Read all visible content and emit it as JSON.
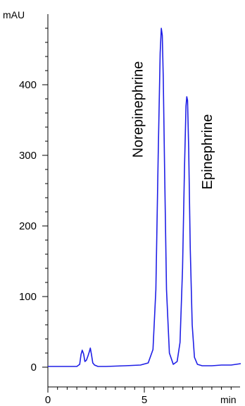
{
  "chart_data": {
    "type": "line",
    "title": "",
    "ylabel": "mAU",
    "xlabel": "min",
    "xlim": [
      0,
      10
    ],
    "ylim": [
      -10,
      490
    ],
    "x_ticks": [
      0,
      5
    ],
    "x_tick_labels": [
      "0",
      "5"
    ],
    "y_ticks": [
      0,
      100,
      200,
      300,
      400
    ],
    "y_tick_labels": [
      "0",
      "100",
      "200",
      "300",
      "400"
    ],
    "line_color": "#1f1fe6",
    "annotations": [
      {
        "label": "Norepinephrine",
        "x": 4.9,
        "y": 365
      },
      {
        "label": "Epinephrine",
        "x": 8.5,
        "y": 305
      }
    ],
    "series": [
      {
        "x": [
          0.0,
          1.5,
          1.65,
          1.72,
          1.78,
          1.85,
          1.92,
          2.0,
          2.08,
          2.15,
          2.2,
          2.26,
          2.33,
          2.42,
          2.6,
          3.0,
          4.0,
          4.8,
          5.2,
          5.45,
          5.6,
          5.72,
          5.82,
          5.88,
          5.93,
          5.98,
          6.05,
          6.15,
          6.3,
          6.5,
          6.7,
          6.85,
          6.98,
          7.08,
          7.16,
          7.2,
          7.24,
          7.3,
          7.38,
          7.48,
          7.6,
          7.75,
          8.0,
          8.5,
          9.0,
          9.5,
          10.0
        ],
        "y": [
          1,
          1,
          4,
          18,
          24,
          19,
          8,
          10,
          16,
          22,
          27,
          18,
          6,
          3,
          1,
          1,
          2,
          3,
          6,
          25,
          110,
          300,
          445,
          480,
          470,
          410,
          280,
          110,
          20,
          4,
          8,
          35,
          140,
          280,
          370,
          383,
          378,
          310,
          170,
          60,
          14,
          4,
          2,
          2,
          3,
          3,
          5
        ]
      }
    ]
  }
}
